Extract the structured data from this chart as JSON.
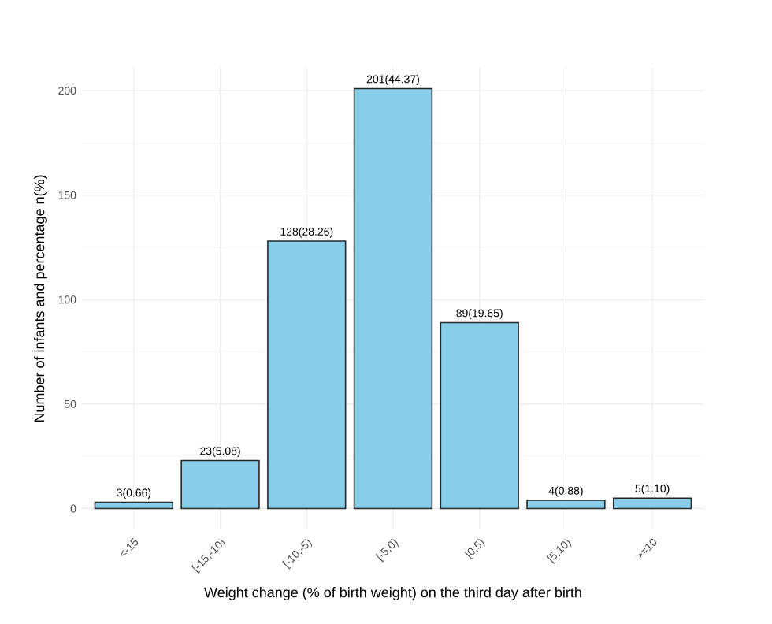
{
  "chart_data": {
    "type": "bar",
    "xlabel": "Weight change (% of birth weight) on the third day after birth",
    "ylabel": "Number of infants and percentage n(%)",
    "categories": [
      "<-15",
      "[-15,-10)",
      "[-10,-5)",
      "[-5,0)",
      "[0,5)",
      "[5,10)",
      ">=10"
    ],
    "values": [
      3,
      23,
      128,
      201,
      89,
      4,
      5
    ],
    "value_labels": [
      "3(0.66)",
      "23(5.08)",
      "128(28.26)",
      "201(44.37)",
      "89(19.65)",
      "4(0.88)",
      "5(1.10)"
    ],
    "color": "#87ceeb",
    "ylim": [
      -10,
      211
    ],
    "yticks": [
      0,
      50,
      100,
      150,
      200
    ],
    "grid": true
  }
}
